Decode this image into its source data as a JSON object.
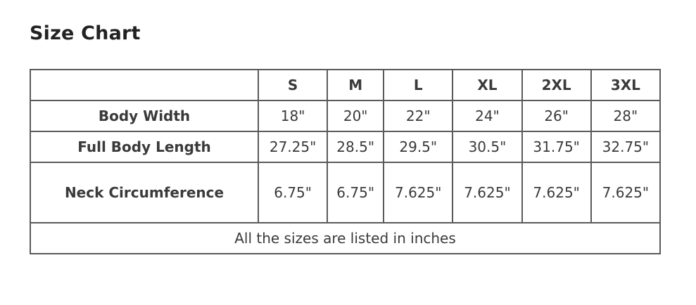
{
  "title": "Size Chart",
  "table": {
    "headers": [
      "",
      "S",
      "M",
      "L",
      "XL",
      "2XL",
      "3XL"
    ],
    "rows": [
      {
        "label": "Body Width",
        "values": [
          "18\"",
          "20\"",
          "22\"",
          "24\"",
          "26\"",
          "28\""
        ]
      },
      {
        "label": "Full Body Length",
        "values": [
          "27.25\"",
          "28.5\"",
          "29.5\"",
          "30.5\"",
          "31.75\"",
          "32.75\""
        ]
      },
      {
        "label": "Neck Circumference",
        "values": [
          "6.75\"",
          "6.75\"",
          "7.625\"",
          "7.625\"",
          "7.625\"",
          "7.625\""
        ]
      }
    ],
    "footer": "All the sizes are listed in inches"
  }
}
